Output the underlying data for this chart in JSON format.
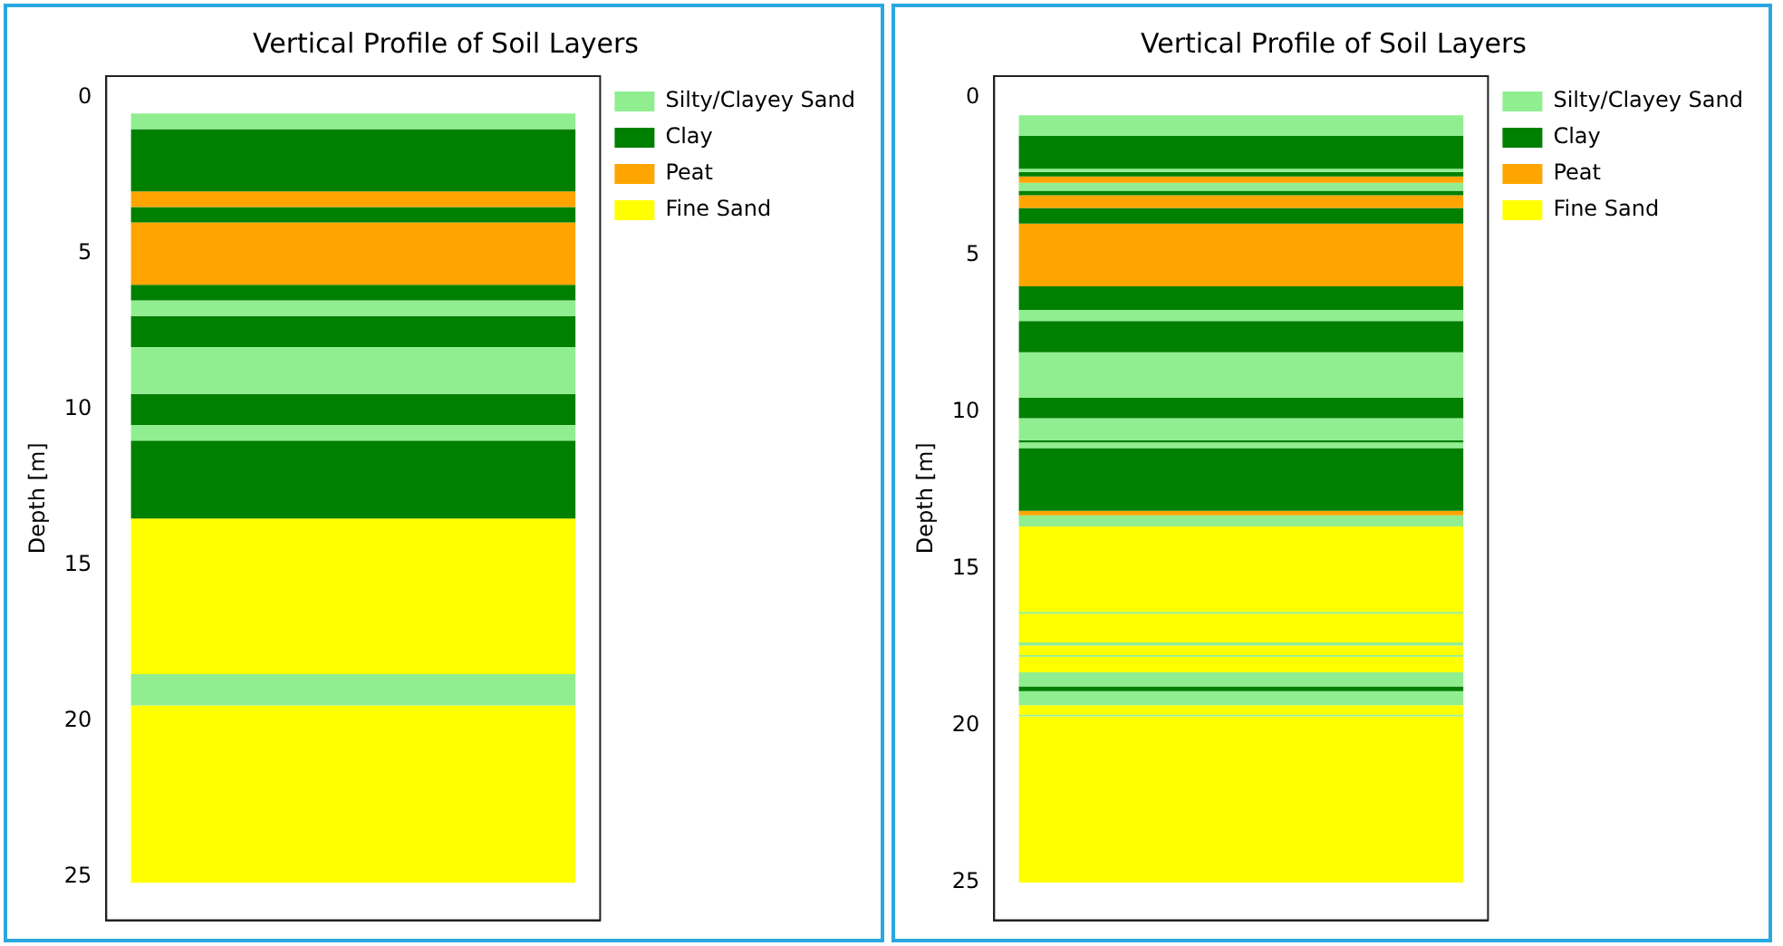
{
  "chart_data": [
    {
      "type": "bar",
      "title": "Vertical Profile of Soil Layers",
      "ylabel": "Depth [m]",
      "categories": [
        null
      ],
      "ylim": [
        26.4,
        -0.7
      ],
      "yticks": [
        0,
        5,
        10,
        15,
        20,
        25
      ],
      "legend": "top right",
      "tick_labels": "y",
      "series": [
        {
          "name": "Silty/Clayey Sand",
          "color": "#90ee90",
          "base": [
            0.5
          ],
          "values": [
            0.5
          ]
        },
        {
          "name": "Clay",
          "color": "#008000",
          "base": [
            1
          ],
          "values": [
            2
          ]
        },
        {
          "name": "Peat",
          "color": "#ffa500",
          "base": [
            3
          ],
          "values": [
            0.5
          ]
        },
        {
          "color": "#008000",
          "base": [
            3.5
          ],
          "values": [
            0.5
          ]
        },
        {
          "color": "#ffa500",
          "base": [
            4
          ],
          "values": [
            2
          ]
        },
        {
          "color": "#008000",
          "base": [
            6
          ],
          "values": [
            0.5
          ]
        },
        {
          "color": "#90ee90",
          "base": [
            6.5
          ],
          "values": [
            0.5
          ]
        },
        {
          "color": "#008000",
          "base": [
            7
          ],
          "values": [
            1
          ]
        },
        {
          "color": "#90ee90",
          "base": [
            8
          ],
          "values": [
            1.5
          ]
        },
        {
          "color": "#008000",
          "base": [
            9.5
          ],
          "values": [
            1
          ]
        },
        {
          "color": "#90ee90",
          "base": [
            10.5
          ],
          "values": [
            0.5
          ]
        },
        {
          "color": "#008000",
          "base": [
            11
          ],
          "values": [
            2.5
          ]
        },
        {
          "name": "Fine Sand",
          "color": "#ffff00",
          "base": [
            13.5
          ],
          "values": [
            5
          ]
        },
        {
          "color": "#90ee90",
          "base": [
            18.5
          ],
          "values": [
            1
          ]
        },
        {
          "color": "#ffff00",
          "base": [
            19.5
          ],
          "values": [
            5.7
          ]
        }
      ]
    },
    {
      "type": "bar",
      "title": "Vertical Profile of Soil Layers",
      "ylabel": "Depth [m]",
      "categories": [
        null
      ],
      "ylim": [
        26.2,
        -0.7
      ],
      "yticks": [
        0,
        5,
        10,
        15,
        20,
        25
      ],
      "legend": "top right",
      "tick_labels": "y",
      "series": [
        {
          "name": "Silty/Clayey Sand",
          "color": "#90ee90",
          "base": [
            0.55
          ],
          "values": [
            0.65
          ]
        },
        {
          "name": "Clay",
          "color": "#008000",
          "base": [
            1.2
          ],
          "values": [
            1.05
          ]
        },
        {
          "color": "#90ee90",
          "base": [
            2.25
          ],
          "values": [
            0.1
          ]
        },
        {
          "color": "#008000",
          "base": [
            2.35
          ],
          "values": [
            0.15
          ]
        },
        {
          "name": "Peat",
          "color": "#ffa500",
          "base": [
            2.5
          ],
          "values": [
            0.2
          ]
        },
        {
          "color": "#90ee90",
          "base": [
            2.7
          ],
          "values": [
            0.25
          ]
        },
        {
          "color": "#008000",
          "base": [
            2.95
          ],
          "values": [
            0.15
          ]
        },
        {
          "color": "#ffa500",
          "base": [
            3.1
          ],
          "values": [
            0.4
          ]
        },
        {
          "color": "#008000",
          "base": [
            3.5
          ],
          "values": [
            0.5
          ]
        },
        {
          "color": "#ffa500",
          "base": [
            4
          ],
          "values": [
            2
          ]
        },
        {
          "color": "#008000",
          "base": [
            6
          ],
          "values": [
            0.75
          ]
        },
        {
          "color": "#90ee90",
          "base": [
            6.75
          ],
          "values": [
            0.35
          ]
        },
        {
          "color": "#008000",
          "base": [
            7.1
          ],
          "values": [
            1
          ]
        },
        {
          "color": "#90ee90",
          "base": [
            8.1
          ],
          "values": [
            1.45
          ]
        },
        {
          "color": "#008000",
          "base": [
            9.55
          ],
          "values": [
            0.65
          ]
        },
        {
          "color": "#90ee90",
          "base": [
            10.2
          ],
          "values": [
            0.7
          ]
        },
        {
          "color": "#008000",
          "base": [
            10.9
          ],
          "values": [
            0.07
          ]
        },
        {
          "color": "#90ee90",
          "base": [
            10.97
          ],
          "values": [
            0.18
          ]
        },
        {
          "color": "#008000",
          "base": [
            11.15
          ],
          "values": [
            2
          ]
        },
        {
          "color": "#ffa500",
          "base": [
            13.15
          ],
          "values": [
            0.15
          ]
        },
        {
          "color": "#90ee90",
          "base": [
            13.3
          ],
          "values": [
            0.35
          ]
        },
        {
          "name": "Fine Sand",
          "color": "#ffff00",
          "base": [
            13.65
          ],
          "values": [
            2.72
          ]
        },
        {
          "color": "#90ee90",
          "base": [
            16.37
          ],
          "values": [
            0.06
          ]
        },
        {
          "color": "#ffff00",
          "base": [
            16.43
          ],
          "values": [
            0.92
          ]
        },
        {
          "color": "#90ee90",
          "base": [
            17.35
          ],
          "values": [
            0.1
          ]
        },
        {
          "color": "#ffff00",
          "base": [
            17.45
          ],
          "values": [
            0.3
          ]
        },
        {
          "color": "#90ee90",
          "base": [
            17.75
          ],
          "values": [
            0.05
          ]
        },
        {
          "color": "#ffff00",
          "base": [
            17.8
          ],
          "values": [
            0.5
          ]
        },
        {
          "color": "#90ee90",
          "base": [
            18.3
          ],
          "values": [
            0.45
          ]
        },
        {
          "color": "#008000",
          "base": [
            18.75
          ],
          "values": [
            0.15
          ]
        },
        {
          "color": "#90ee90",
          "base": [
            18.9
          ],
          "values": [
            0.45
          ]
        },
        {
          "color": "#ffff00",
          "base": [
            19.35
          ],
          "values": [
            0.3
          ]
        },
        {
          "color": "#90ee90",
          "base": [
            19.65
          ],
          "values": [
            0.05
          ]
        },
        {
          "color": "#ffff00",
          "base": [
            19.7
          ],
          "values": [
            5.3
          ]
        }
      ]
    }
  ]
}
